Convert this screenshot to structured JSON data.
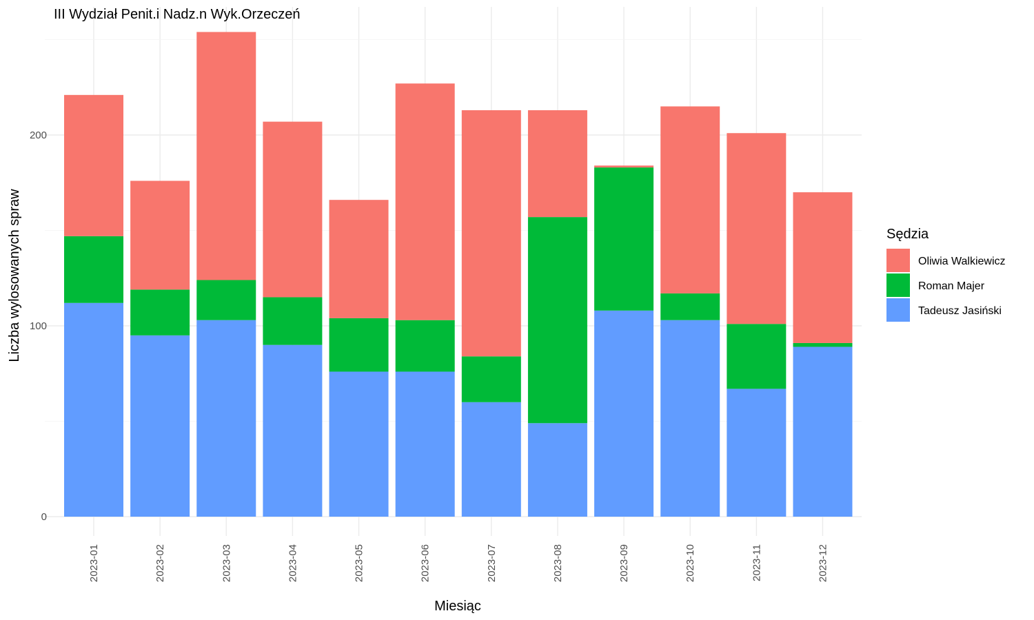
{
  "chart_data": {
    "type": "bar",
    "stacked": true,
    "title": "III Wydział Penit.i Nadz.n Wyk.Orzeczeń",
    "xlabel": "Miesiąc",
    "ylabel": "Liczba wylosowanych spraw",
    "ylim": [
      0,
      255
    ],
    "yticks": [
      0,
      100,
      200
    ],
    "grid": true,
    "legend_position": "right",
    "legend_title": "Sędzia",
    "categories": [
      "2023-01",
      "2023-02",
      "2023-03",
      "2023-04",
      "2023-05",
      "2023-06",
      "2023-07",
      "2023-08",
      "2023-09",
      "2023-10",
      "2023-11",
      "2023-12"
    ],
    "series": [
      {
        "name": "Tadeusz Jasiński",
        "color": "#619CFF",
        "values": [
          112,
          95,
          103,
          90,
          76,
          76,
          60,
          49,
          108,
          103,
          67,
          89
        ]
      },
      {
        "name": "Roman Majer",
        "color": "#00BA38",
        "values": [
          35,
          24,
          21,
          25,
          28,
          27,
          24,
          108,
          75,
          14,
          34,
          2
        ]
      },
      {
        "name": "Oliwia Walkiewicz",
        "color": "#F8766D",
        "values": [
          74,
          57,
          130,
          92,
          62,
          124,
          129,
          56,
          1,
          98,
          100,
          79
        ]
      }
    ],
    "legend_order": [
      "Oliwia Walkiewicz",
      "Roman Majer",
      "Tadeusz Jasiński"
    ]
  }
}
